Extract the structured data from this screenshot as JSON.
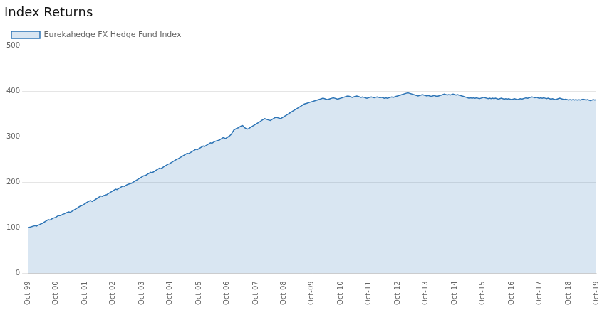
{
  "chart_data": {
    "type": "area",
    "title": "Index Returns",
    "categories": [
      "Oct-99",
      null,
      null,
      null,
      null,
      null,
      null,
      null,
      null,
      null,
      null,
      null,
      null,
      null,
      null,
      null,
      null,
      null,
      null,
      "Oct-00",
      null,
      null,
      null,
      null,
      null,
      null,
      null,
      null,
      null,
      null,
      null,
      null,
      null,
      null,
      null,
      null,
      null,
      null,
      null,
      "Oct-01",
      null,
      null,
      null,
      null,
      null,
      null,
      null,
      null,
      null,
      null,
      null,
      null,
      null,
      null,
      null,
      null,
      null,
      null,
      "Oct-02",
      null,
      null,
      null,
      null,
      null,
      null,
      null,
      null,
      null,
      null,
      null,
      null,
      null,
      null,
      null,
      null,
      null,
      null,
      null,
      "Oct-03",
      null,
      null,
      null,
      null,
      null,
      null,
      null,
      null,
      null,
      null,
      null,
      null,
      null,
      null,
      null,
      null,
      null,
      null,
      "Oct-04",
      null,
      null,
      null,
      null,
      null,
      null,
      null,
      null,
      null,
      null,
      null,
      null,
      null,
      null,
      null,
      null,
      null,
      null,
      null,
      "Oct-05",
      null,
      null,
      null,
      null,
      null,
      null,
      null,
      null,
      null,
      null,
      null,
      null,
      null,
      null,
      null,
      null,
      null,
      null,
      "Oct-06",
      null,
      null,
      null,
      null,
      null,
      null,
      null,
      null,
      null,
      null,
      null,
      null,
      null,
      null,
      null,
      null,
      null,
      null,
      null,
      "Oct-07",
      null,
      null,
      null,
      null,
      null,
      null,
      null,
      null,
      null,
      null,
      null,
      null,
      null,
      null,
      null,
      null,
      null,
      null,
      "Oct-08",
      null,
      null,
      null,
      null,
      null,
      null,
      null,
      null,
      null,
      null,
      null,
      null,
      null,
      null,
      null,
      null,
      null,
      null,
      "Oct-09",
      null,
      null,
      null,
      null,
      null,
      null,
      null,
      null,
      null,
      null,
      null,
      null,
      null,
      null,
      null,
      null,
      null,
      null,
      null,
      "Oct-10",
      null,
      null,
      null,
      null,
      null,
      null,
      null,
      null,
      null,
      null,
      null,
      null,
      null,
      null,
      null,
      null,
      null,
      null,
      "Oct-11",
      null,
      null,
      null,
      null,
      null,
      null,
      null,
      null,
      null,
      null,
      null,
      null,
      null,
      null,
      null,
      null,
      null,
      null,
      null,
      "Oct-12",
      null,
      null,
      null,
      null,
      null,
      null,
      null,
      null,
      null,
      null,
      null,
      null,
      null,
      null,
      null,
      null,
      null,
      null,
      "Oct-13",
      null,
      null,
      null,
      null,
      null,
      null,
      null,
      null,
      null,
      null,
      null,
      null,
      null,
      null,
      null,
      null,
      null,
      null,
      null,
      "Oct-14",
      null,
      null,
      null,
      null,
      null,
      null,
      null,
      null,
      null,
      null,
      null,
      null,
      null,
      null,
      null,
      null,
      null,
      null,
      "Oct-15",
      null,
      null,
      null,
      null,
      null,
      null,
      null,
      null,
      null,
      null,
      null,
      null,
      null,
      null,
      null,
      null,
      null,
      null,
      null,
      "Oct-16",
      null,
      null,
      null,
      null,
      null,
      null,
      null,
      null,
      null,
      null,
      null,
      null,
      null,
      null,
      null,
      null,
      null,
      null,
      "Oct-17",
      null,
      null,
      null,
      null,
      null,
      null,
      null,
      null,
      null,
      null,
      null,
      null,
      null,
      null,
      null,
      null,
      null,
      null,
      null,
      "Oct-18",
      null,
      null,
      null,
      null,
      null,
      null,
      null,
      null,
      null,
      null,
      null,
      null,
      null,
      null,
      null,
      null,
      null,
      null,
      "Oct-19"
    ],
    "series": [
      {
        "name": "Eurekahedge FX Hedge Fund Index",
        "color": "#2E75B6",
        "values": [
          100,
          101,
          102,
          103,
          104,
          105,
          104,
          106,
          107,
          109,
          110,
          112,
          114,
          116,
          118,
          117,
          119,
          121,
          122,
          123,
          125,
          127,
          127,
          128,
          130,
          131,
          133,
          134,
          135,
          134,
          136,
          138,
          140,
          142,
          144,
          146,
          148,
          149,
          151,
          153,
          155,
          157,
          159,
          160,
          158,
          160,
          162,
          164,
          166,
          168,
          170,
          169,
          171,
          172,
          173,
          175,
          177,
          179,
          181,
          183,
          185,
          184,
          186,
          188,
          190,
          192,
          191,
          193,
          195,
          196,
          197,
          198,
          200,
          202,
          204,
          206,
          208,
          210,
          212,
          214,
          215,
          216,
          218,
          220,
          222,
          221,
          223,
          225,
          227,
          229,
          231,
          230,
          232,
          234,
          236,
          238,
          240,
          241,
          243,
          245,
          247,
          249,
          251,
          252,
          254,
          256,
          258,
          260,
          262,
          264,
          263,
          265,
          267,
          269,
          271,
          273,
          272,
          274,
          276,
          278,
          280,
          279,
          281,
          283,
          285,
          287,
          286,
          288,
          290,
          291,
          292,
          293,
          295,
          297,
          299,
          296,
          298,
          300,
          302,
          305,
          310,
          315,
          317,
          319,
          320,
          322,
          324,
          325,
          321,
          319,
          317,
          318,
          320,
          322,
          324,
          326,
          328,
          330,
          332,
          334,
          336,
          338,
          340,
          339,
          338,
          337,
          336,
          338,
          340,
          342,
          343,
          342,
          341,
          340,
          342,
          344,
          346,
          348,
          350,
          352,
          354,
          356,
          358,
          360,
          362,
          364,
          366,
          368,
          370,
          372,
          373,
          374,
          375,
          376,
          377,
          378,
          379,
          380,
          381,
          382,
          383,
          384,
          385,
          384,
          383,
          382,
          383,
          384,
          385,
          386,
          385,
          384,
          383,
          384,
          385,
          386,
          387,
          388,
          389,
          390,
          389,
          388,
          387,
          388,
          389,
          390,
          389,
          388,
          387,
          388,
          387,
          386,
          385,
          386,
          387,
          388,
          387,
          386,
          387,
          388,
          387,
          386,
          387,
          386,
          385,
          386,
          385,
          386,
          387,
          388,
          387,
          388,
          389,
          390,
          391,
          392,
          393,
          394,
          395,
          396,
          397,
          396,
          395,
          394,
          393,
          392,
          391,
          390,
          391,
          392,
          393,
          392,
          391,
          390,
          391,
          390,
          389,
          390,
          391,
          390,
          389,
          390,
          391,
          392,
          393,
          394,
          393,
          392,
          393,
          392,
          393,
          394,
          393,
          392,
          393,
          392,
          391,
          390,
          389,
          388,
          387,
          386,
          385,
          386,
          385,
          386,
          385,
          386,
          385,
          384,
          385,
          386,
          387,
          386,
          385,
          384,
          385,
          384,
          385,
          384,
          385,
          384,
          383,
          384,
          385,
          384,
          383,
          384,
          383,
          384,
          383,
          382,
          383,
          384,
          383,
          382,
          383,
          384,
          383,
          384,
          385,
          386,
          385,
          386,
          387,
          388,
          387,
          386,
          387,
          386,
          385,
          386,
          385,
          386,
          385,
          384,
          385,
          384,
          383,
          384,
          383,
          382,
          383,
          384,
          385,
          384,
          383,
          382,
          383,
          382,
          381,
          382,
          381,
          382,
          381,
          382,
          381,
          382,
          381,
          382,
          383,
          382,
          381,
          382,
          381,
          380,
          381,
          382,
          381,
          382
        ]
      }
    ],
    "ylim": [
      0,
      500
    ],
    "yticks": [
      0,
      100,
      200,
      300,
      400,
      500
    ],
    "grid": true,
    "legend": "top"
  }
}
